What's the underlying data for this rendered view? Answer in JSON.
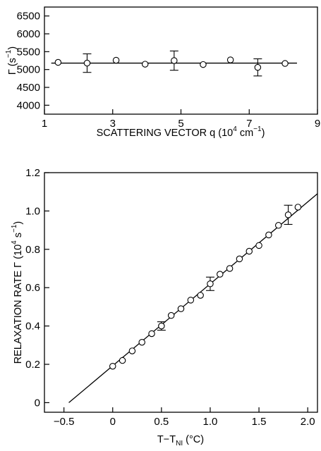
{
  "chart_data": [
    {
      "type": "scatter",
      "xlabel": "SCATTERING VECTOR q (10",
      "xlabel_exp": "4",
      "xlabel_unit": " cm",
      "xlabel_unit_exp": "−1",
      "xlabel_close": ")",
      "ylabel": "Γ (s",
      "ylabel_exp": "−1",
      "ylabel_close": ")",
      "xlim": [
        1,
        9
      ],
      "ylim": [
        3750,
        6750
      ],
      "xticks": [
        1,
        3,
        5,
        7,
        9
      ],
      "xtick_labels": [
        "1",
        "3",
        "5",
        "7",
        "9"
      ],
      "yticks": [
        4000,
        4500,
        5000,
        5500,
        6000,
        6500
      ],
      "ytick_labels": [
        "4000",
        "4500",
        "5000",
        "5500",
        "6000",
        "6500"
      ],
      "fit_line": [
        [
          1.2,
          5180
        ],
        [
          8.4,
          5180
        ]
      ],
      "series": [
        {
          "x": [
            1.4,
            2.25,
            3.1,
            3.95,
            4.8,
            5.65,
            6.45,
            7.25,
            8.05
          ],
          "y": [
            5200,
            5180,
            5260,
            5150,
            5250,
            5140,
            5270,
            5060,
            5170
          ],
          "yerr": [
            0,
            260,
            0,
            0,
            270,
            0,
            0,
            240,
            0
          ]
        }
      ]
    },
    {
      "type": "scatter",
      "xlabel": "T−T",
      "xlabel_sub": "NI",
      "xlabel_unit": " (°C)",
      "ylabel": "RELAXATION RATE Γ (10",
      "ylabel_exp": "4",
      "ylabel_unit": " s",
      "ylabel_unit_exp": "−1",
      "ylabel_close": ")",
      "xlim": [
        -0.7,
        2.1
      ],
      "ylim": [
        -0.05,
        1.2
      ],
      "xticks": [
        -0.5,
        0,
        0.5,
        1.0,
        1.5,
        2.0
      ],
      "xtick_labels": [
        "−0.5",
        "0",
        "0.5",
        "1.0",
        "1.5",
        "2.0"
      ],
      "yticks": [
        0,
        0.2,
        0.4,
        0.6,
        0.8,
        1.0,
        1.2
      ],
      "ytick_labels": [
        "0",
        "0.2",
        "0.4",
        "0.6",
        "0.8",
        "1.0",
        "1.2"
      ],
      "fit_line": [
        [
          -0.45,
          0.0
        ],
        [
          2.1,
          1.09
        ]
      ],
      "series": [
        {
          "x": [
            0.0,
            0.1,
            0.2,
            0.3,
            0.4,
            0.5,
            0.6,
            0.7,
            0.8,
            0.9,
            1.0,
            1.1,
            1.2,
            1.3,
            1.4,
            1.5,
            1.6,
            1.7,
            1.8,
            1.9
          ],
          "y": [
            0.19,
            0.22,
            0.27,
            0.315,
            0.36,
            0.4,
            0.455,
            0.49,
            0.535,
            0.56,
            0.62,
            0.67,
            0.7,
            0.75,
            0.79,
            0.82,
            0.875,
            0.925,
            0.98,
            1.02
          ],
          "yerr": [
            0,
            0,
            0,
            0,
            0,
            0.022,
            0,
            0,
            0,
            0,
            0.035,
            0,
            0,
            0,
            0,
            0,
            0,
            0,
            0.05,
            0
          ]
        }
      ]
    }
  ]
}
